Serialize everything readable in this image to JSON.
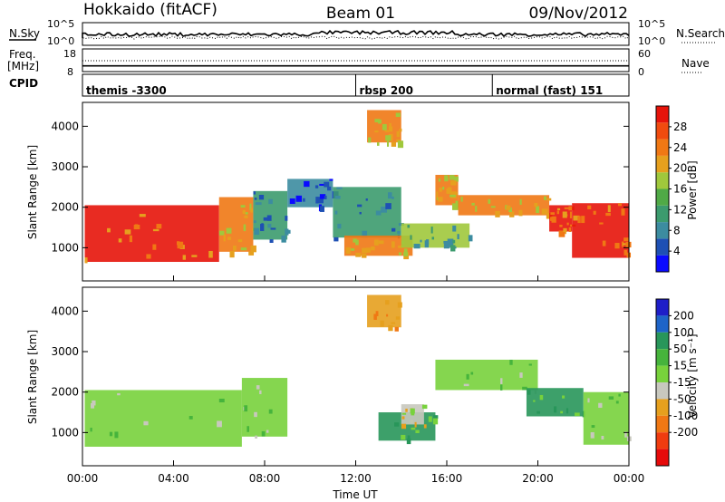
{
  "header": {
    "station": "Hokkaido (fitACF)",
    "beam": "Beam 01",
    "date": "09/Nov/2012"
  },
  "noise_panel": {
    "left_label": "N.Sky",
    "right_label": "N.Search",
    "left_ticks": [
      "10^5",
      "10^0"
    ],
    "right_ticks": [
      "10^5",
      "10^0"
    ]
  },
  "freq_panel": {
    "left_label_1": "Freq.",
    "left_label_2": "[MHz]",
    "right_label": "Nave",
    "left_ticks": [
      "18",
      "8"
    ],
    "right_ticks": [
      "60",
      "0"
    ],
    "freq_mhz": 10.8
  },
  "cpid": {
    "label": "CPID",
    "segments": [
      {
        "name": "themis -3300",
        "start_hour": 0.0
      },
      {
        "name": "rbsp 200",
        "start_hour": 12.0
      },
      {
        "name": "normal (fast) 151",
        "start_hour": 18.0
      }
    ]
  },
  "x_axis": {
    "title": "Time UT",
    "ticks": [
      "00:00",
      "04:00",
      "08:00",
      "12:00",
      "16:00",
      "20:00",
      "00:00"
    ],
    "range_hours": [
      0,
      24
    ]
  },
  "y_axis": {
    "title": "Slant Range [km]",
    "ticks": [
      "1000",
      "2000",
      "3000",
      "4000"
    ],
    "range_km": [
      180,
      4590
    ]
  },
  "power_colorbar": {
    "title": "Power [dB]",
    "ticks": [
      "4",
      "8",
      "12",
      "16",
      "20",
      "24",
      "28"
    ],
    "colors": [
      "#0a0aff",
      "#1e50b4",
      "#3c8ca0",
      "#3c9b6e",
      "#50aa46",
      "#a0c83c",
      "#e6a01e",
      "#f07814",
      "#f04b0f",
      "#e6140a"
    ]
  },
  "velocity_colorbar": {
    "title": "Velocity [m s⁻¹]",
    "ticks": [
      "200",
      "100",
      "50",
      "15",
      "-15",
      "-50",
      "-100",
      "-200"
    ],
    "colors": [
      "#1e1ec8",
      "#1e64c8",
      "#28965a",
      "#46b43c",
      "#78d23c",
      "#c8c8be",
      "#e6a01e",
      "#f07814",
      "#f03c0f",
      "#e60a0a"
    ]
  },
  "chart_data": {
    "type": "heatmap",
    "x_unit": "hours UT",
    "y_unit": "km",
    "power_regions": [
      {
        "t": [
          0.1,
          6.0
        ],
        "r": [
          650,
          2050
        ],
        "db": 28
      },
      {
        "t": [
          6.0,
          7.5
        ],
        "r": [
          900,
          2250
        ],
        "db": 24
      },
      {
        "t": [
          7.5,
          9.0
        ],
        "r": [
          1200,
          2400
        ],
        "db": 12
      },
      {
        "t": [
          9.0,
          11.0
        ],
        "r": [
          2000,
          2700
        ],
        "db": 8
      },
      {
        "t": [
          11.0,
          14.0
        ],
        "r": [
          1250,
          2500
        ],
        "db": 12
      },
      {
        "t": [
          11.5,
          14.5
        ],
        "r": [
          800,
          1300
        ],
        "db": 24
      },
      {
        "t": [
          12.5,
          14.0
        ],
        "r": [
          3600,
          4400
        ],
        "db": 24
      },
      {
        "t": [
          14.0,
          17.0
        ],
        "r": [
          1000,
          1600
        ],
        "db": 16
      },
      {
        "t": [
          15.5,
          16.5
        ],
        "r": [
          2050,
          2800
        ],
        "db": 24
      },
      {
        "t": [
          16.5,
          20.5
        ],
        "r": [
          1800,
          2300
        ],
        "db": 24
      },
      {
        "t": [
          20.5,
          21.5
        ],
        "r": [
          1400,
          2050
        ],
        "db": 28
      },
      {
        "t": [
          21.5,
          24.0
        ],
        "r": [
          750,
          2100
        ],
        "db": 28
      }
    ],
    "velocity_regions": [
      {
        "t": [
          0.1,
          7.0
        ],
        "r": [
          650,
          2050
        ],
        "v": 0
      },
      {
        "t": [
          7.0,
          9.0
        ],
        "r": [
          900,
          2350
        ],
        "v": 0
      },
      {
        "t": [
          12.5,
          14.0
        ],
        "r": [
          3600,
          4400
        ],
        "v": -100
      },
      {
        "t": [
          13.0,
          15.5
        ],
        "r": [
          800,
          1500
        ],
        "v": 50
      },
      {
        "t": [
          14.0,
          15.0
        ],
        "r": [
          1200,
          1700
        ],
        "v": -50
      },
      {
        "t": [
          15.5,
          20.0
        ],
        "r": [
          2050,
          2800
        ],
        "v": 0
      },
      {
        "t": [
          19.5,
          22.0
        ],
        "r": [
          1400,
          2100
        ],
        "v": 50
      },
      {
        "t": [
          22.0,
          24.0
        ],
        "r": [
          700,
          2000
        ],
        "v": 0
      }
    ]
  }
}
